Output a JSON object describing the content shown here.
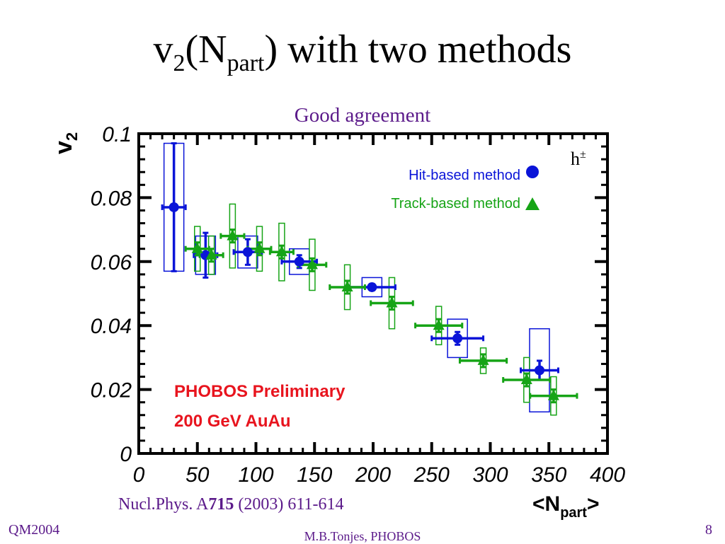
{
  "slide": {
    "title_main": "v",
    "title_sub2": "2",
    "title_open": "(N",
    "title_subpart": "part",
    "title_rest": ") with two methods",
    "subtitle": "Good agreement",
    "ref_prefix": "Nucl.Phys. A",
    "ref_volume": "715",
    "ref_suffix": " (2003) 611-614",
    "footer_left": "QM2004",
    "footer_center": "M.B.Tonjes, PHOBOS",
    "footer_right": "8"
  },
  "colors": {
    "hit": "#0a14d8",
    "track": "#16a416",
    "annotation": "#e8141e",
    "accent": "#5b1a8a"
  },
  "chart_data": {
    "type": "scatter",
    "ylabel": "v",
    "ylabel_sub": "2",
    "xlabel": "<N",
    "xlabel_sub": "part",
    "xlabel_close": ">",
    "xlim": [
      0,
      400
    ],
    "ylim": [
      0,
      0.1
    ],
    "xticks": [
      0,
      50,
      100,
      150,
      200,
      250,
      300,
      350,
      400
    ],
    "yticks": [
      0,
      0.02,
      0.04,
      0.06,
      0.08,
      0.1
    ],
    "ytick_labels": [
      "0",
      "0.02",
      "0.04",
      "0.06",
      "0.08",
      "0.1"
    ],
    "grid": false,
    "legend_position": "top-right",
    "particle_label": "h",
    "particle_sup": "±",
    "annotations": [
      "PHOBOS Preliminary",
      "200 GeV AuAu"
    ],
    "series": [
      {
        "name": "Hit-based method",
        "marker": "circle",
        "points": [
          {
            "x": 30,
            "y": 0.077,
            "xerr": 10,
            "yerr": 0.02,
            "sys": 0.02
          },
          {
            "x": 57,
            "y": 0.062,
            "xerr": 10,
            "yerr": 0.007,
            "sys": 0.006
          },
          {
            "x": 93,
            "y": 0.063,
            "xerr": 12,
            "yerr": 0.004,
            "sys": 0.005
          },
          {
            "x": 137,
            "y": 0.06,
            "xerr": 15,
            "yerr": 0.002,
            "sys": 0.004
          },
          {
            "x": 199,
            "y": 0.052,
            "xerr": 20,
            "yerr": 0.001,
            "sys": 0.003
          },
          {
            "x": 272,
            "y": 0.036,
            "xerr": 22,
            "yerr": 0.002,
            "sys": 0.006
          },
          {
            "x": 342,
            "y": 0.026,
            "xerr": 16,
            "yerr": 0.003,
            "sys": 0.013
          }
        ]
      },
      {
        "name": "Track-based method",
        "marker": "triangle",
        "points": [
          {
            "x": 50,
            "y": 0.064,
            "xerr": 10,
            "yerr": 0.002,
            "sys": 0.007
          },
          {
            "x": 62,
            "y": 0.062,
            "xerr": 10,
            "yerr": 0.002,
            "sys": 0.006
          },
          {
            "x": 80,
            "y": 0.068,
            "xerr": 10,
            "yerr": 0.002,
            "sys": 0.01
          },
          {
            "x": 103,
            "y": 0.064,
            "xerr": 10,
            "yerr": 0.002,
            "sys": 0.007
          },
          {
            "x": 122,
            "y": 0.063,
            "xerr": 10,
            "yerr": 0.002,
            "sys": 0.009
          },
          {
            "x": 148,
            "y": 0.059,
            "xerr": 12,
            "yerr": 0.002,
            "sys": 0.008
          },
          {
            "x": 178,
            "y": 0.052,
            "xerr": 15,
            "yerr": 0.002,
            "sys": 0.007
          },
          {
            "x": 216,
            "y": 0.047,
            "xerr": 18,
            "yerr": 0.002,
            "sys": 0.008
          },
          {
            "x": 256,
            "y": 0.04,
            "xerr": 20,
            "yerr": 0.002,
            "sys": 0.006
          },
          {
            "x": 294,
            "y": 0.029,
            "xerr": 20,
            "yerr": 0.002,
            "sys": 0.004
          },
          {
            "x": 331,
            "y": 0.023,
            "xerr": 20,
            "yerr": 0.002,
            "sys": 0.007
          },
          {
            "x": 354,
            "y": 0.018,
            "xerr": 20,
            "yerr": 0.002,
            "sys": 0.006
          }
        ]
      }
    ]
  }
}
